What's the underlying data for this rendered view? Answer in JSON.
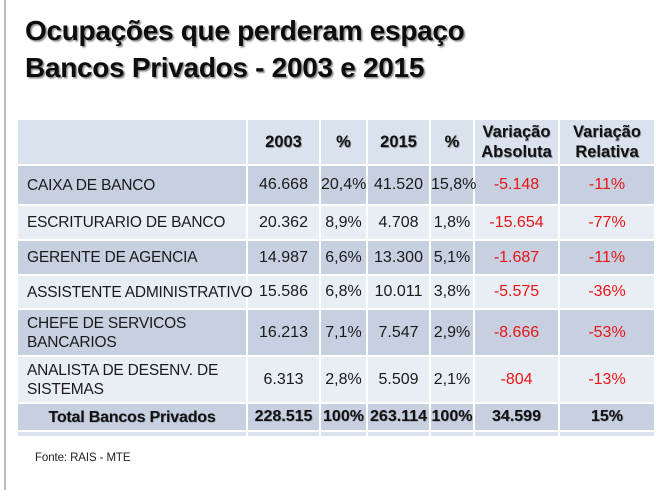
{
  "slide": {
    "title_lines": [
      "Ocupações que perderam espaço",
      "Bancos Privados - 2003 e 2015"
    ],
    "source_note": "Fonte: RAIS - MTE"
  },
  "colors": {
    "header_row_bg": "#dae2ee",
    "band_dark": "#c6d0e1",
    "band_light": "#e9edf4",
    "negative_value_red": "#e91515",
    "title_text": "#0d0d0d",
    "left_edge_line": "#bdbdbd"
  },
  "table": {
    "headers": [
      [
        ""
      ],
      [
        "2003"
      ],
      [
        "%"
      ],
      [
        "2015"
      ],
      [
        "%"
      ],
      [
        "Variação",
        "Absoluta"
      ],
      [
        "Variação",
        "Relativa"
      ]
    ],
    "rows": [
      {
        "label_lines": [
          "CAIXA DE BANCO"
        ],
        "y2003": "46.668",
        "pct2003": "20,4%",
        "y2015": "41.520",
        "pct2015": "15,8%",
        "var_abs": "-5.148",
        "var_rel": "-11%"
      },
      {
        "label_lines": [
          "ESCRITURARIO DE BANCO"
        ],
        "y2003": "20.362",
        "pct2003": "8,9%",
        "y2015": "4.708",
        "pct2015": "1,8%",
        "var_abs": "-15.654",
        "var_rel": "-77%"
      },
      {
        "label_lines": [
          "GERENTE DE AGENCIA"
        ],
        "y2003": "14.987",
        "pct2003": "6,6%",
        "y2015": "13.300",
        "pct2015": "5,1%",
        "var_abs": "-1.687",
        "var_rel": "-11%"
      },
      {
        "label_lines": [
          "ASSISTENTE ADMINISTRATIVO"
        ],
        "y2003": "15.586",
        "pct2003": "6,8%",
        "y2015": "10.011",
        "pct2015": "3,8%",
        "var_abs": "-5.575",
        "var_rel": "-36%"
      },
      {
        "label_lines": [
          "CHEFE DE SERVICOS",
          "BANCARIOS"
        ],
        "y2003": "16.213",
        "pct2003": "7,1%",
        "y2015": "7.547",
        "pct2015": "2,9%",
        "var_abs": "-8.666",
        "var_rel": "-53%"
      },
      {
        "label_lines": [
          "ANALISTA DE DESENV. DE",
          "SISTEMAS"
        ],
        "y2003": "6.313",
        "pct2003": "2,8%",
        "y2015": "5.509",
        "pct2015": "2,1%",
        "var_abs": "-804",
        "var_rel": "-13%"
      }
    ],
    "total_row": {
      "label_lines": [
        "Total Bancos Privados"
      ],
      "y2003": "228.515",
      "pct2003": "100%",
      "y2015": "263.114",
      "pct2015": "100%",
      "var_abs": "34.599",
      "var_rel": "15%"
    }
  }
}
